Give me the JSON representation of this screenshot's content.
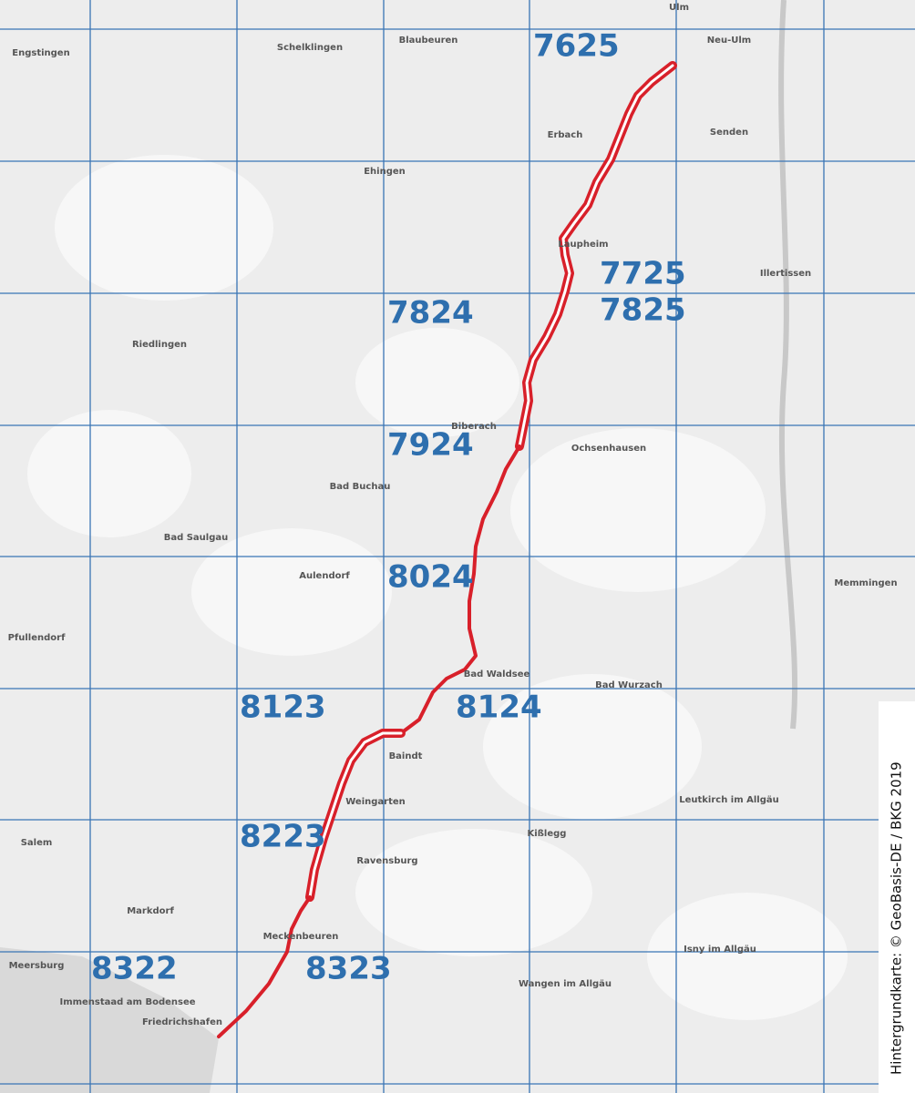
{
  "sheets": [
    "7625",
    "7725",
    "7825",
    "7824",
    "7924",
    "8024",
    "8123",
    "8124",
    "8223",
    "8322",
    "8323"
  ],
  "places": [
    "Ulm",
    "Neu-Ulm",
    "Blaubeuren",
    "Schelklingen",
    "Engstingen",
    "Ehingen",
    "Erbach",
    "Senden",
    "Laupheim",
    "Illertissen",
    "Riedlingen",
    "Biberach",
    "Ochsenhausen",
    "Bad Saulgau",
    "Bad Buchau",
    "Aulendorf",
    "Bad Waldsee",
    "Memmingen",
    "Pfullendorf",
    "Bad Wurzach",
    "Baindt",
    "Weingarten",
    "Ravensburg",
    "Leutkirch im Allgäu",
    "Kißlegg",
    "Markdorf",
    "Meckenbeuren",
    "Wangen im Allgäu",
    "Isny im Allgäu",
    "Meersburg",
    "Immenstaad am Bodensee",
    "Friedrichshafen",
    "Salem"
  ],
  "credit": "Hintergrundkarte: © GeoBasis-DE / BKG 2019"
}
